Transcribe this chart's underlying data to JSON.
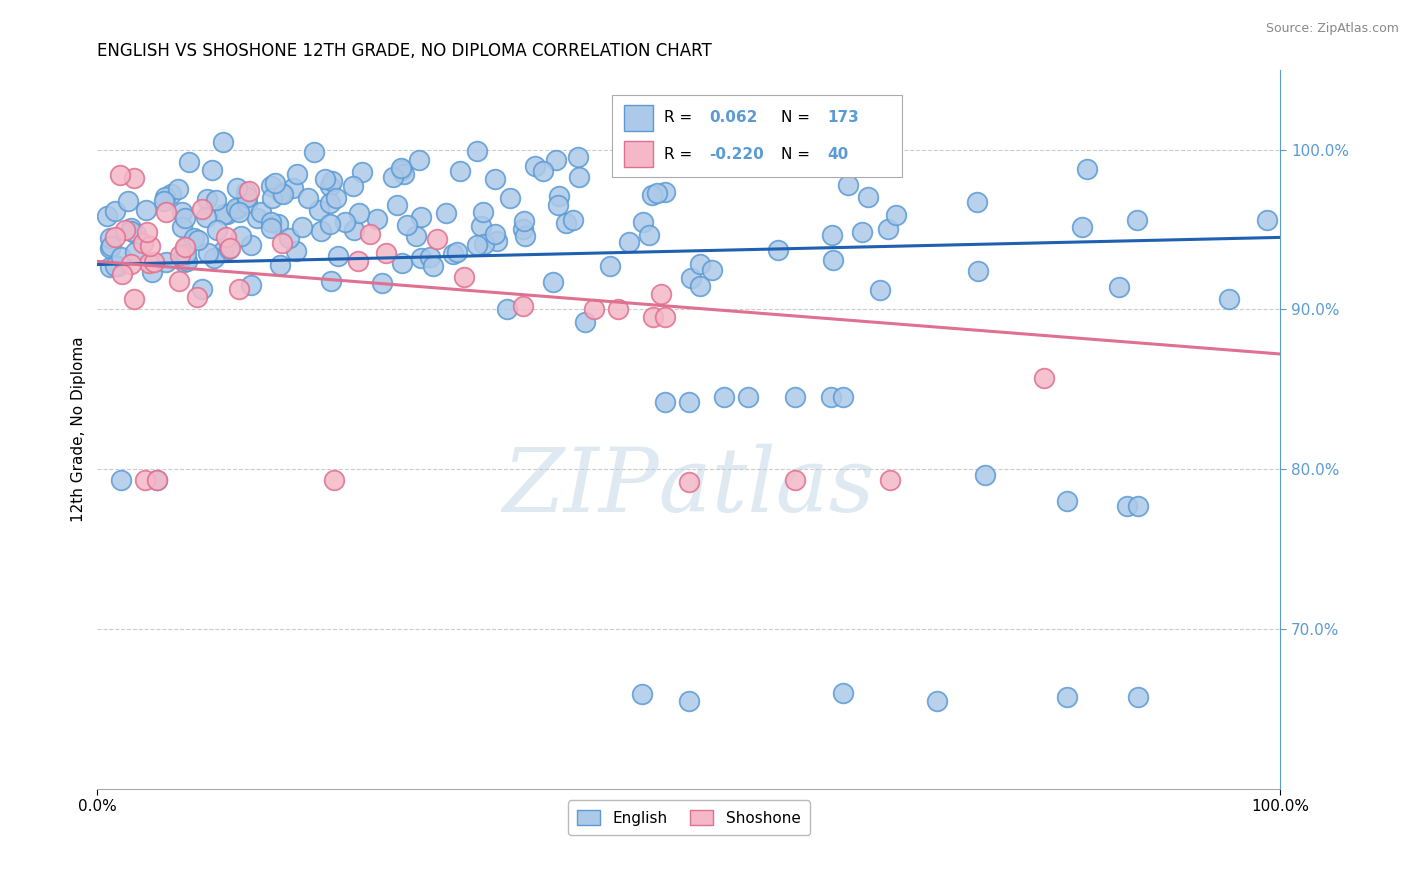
{
  "title": "ENGLISH VS SHOSHONE 12TH GRADE, NO DIPLOMA CORRELATION CHART",
  "source": "Source: ZipAtlas.com",
  "ylabel": "12th Grade, No Diploma",
  "english_R": 0.062,
  "english_N": 173,
  "shoshone_R": -0.22,
  "shoshone_N": 40,
  "english_color": "#adc9e8",
  "english_edge_color": "#5b9bd5",
  "shoshone_color": "#f4b8c8",
  "shoshone_edge_color": "#e07090",
  "trend_english_color": "#2060b0",
  "trend_shoshone_color": "#e07090",
  "background_color": "#ffffff",
  "xlim": [
    0.0,
    1.0
  ],
  "ylim": [
    0.6,
    1.05
  ],
  "grid_color": "#cccccc",
  "title_fontsize": 12,
  "axis_label_fontsize": 11,
  "trend_eng_x0": 0.0,
  "trend_eng_y0": 0.928,
  "trend_eng_x1": 1.0,
  "trend_eng_y1": 0.945,
  "trend_sho_x0": 0.0,
  "trend_sho_y0": 0.93,
  "trend_sho_x1": 1.0,
  "trend_sho_y1": 0.872
}
